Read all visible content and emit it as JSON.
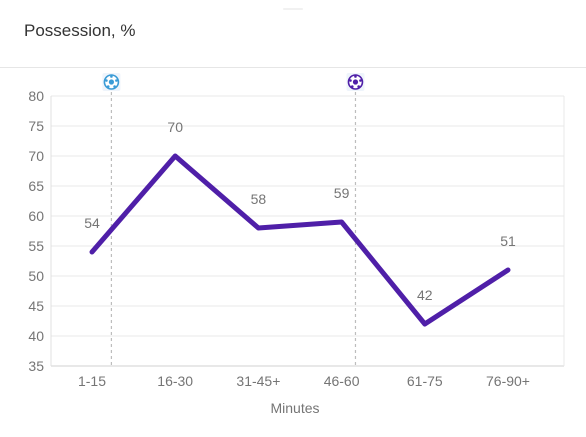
{
  "header": {
    "title": "Possession, %"
  },
  "chart_data": {
    "type": "line",
    "title": "Possession, %",
    "xlabel": "Minutes",
    "ylabel": "",
    "categories": [
      "1-15",
      "16-30",
      "31-45+",
      "46-60",
      "61-75",
      "76-90+"
    ],
    "series": [
      {
        "values": [
          54,
          70,
          58,
          59,
          42,
          51
        ],
        "color": "#4f1fa8"
      }
    ],
    "ylim": [
      35,
      80
    ],
    "yticks": [
      35,
      40,
      45,
      50,
      55,
      60,
      65,
      70,
      75,
      80
    ],
    "grid": true,
    "data_labels": true,
    "events": [
      {
        "minute": 11,
        "icon": "soccer-ball-icon",
        "color": "#3a9bd6"
      },
      {
        "minute": 55,
        "icon": "soccer-ball-icon",
        "color": "#4f1fa8"
      }
    ]
  }
}
